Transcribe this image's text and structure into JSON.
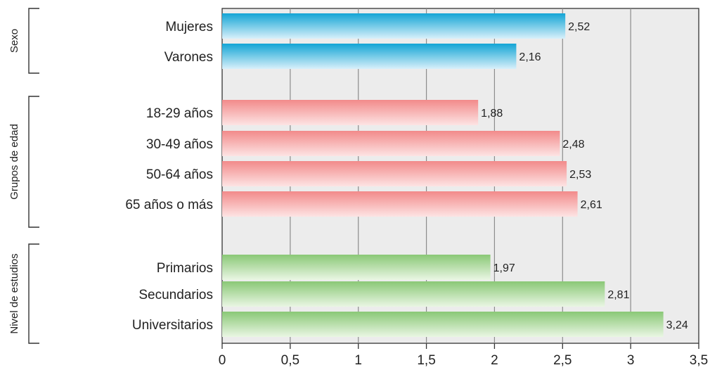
{
  "chart_data": {
    "type": "bar",
    "orientation": "horizontal",
    "grid": true,
    "xlim": [
      0,
      3.5
    ],
    "xticks": [
      0,
      0.5,
      1,
      1.5,
      2,
      2.5,
      3,
      3.5
    ],
    "xtick_labels": [
      "0",
      "0,5",
      "1",
      "1,5",
      "2",
      "2,5",
      "3",
      "3,5"
    ],
    "groups": [
      {
        "name": "Sexo",
        "color": "#1aa7d6",
        "categories": [
          "Mujeres",
          "Varones"
        ],
        "values": [
          2.52,
          2.16
        ],
        "labels": [
          "2,52",
          "2,16"
        ]
      },
      {
        "name": "Grupos de edad",
        "color": "#f08a8a",
        "categories": [
          "18-29 años",
          "30-49 años",
          "50-64 años",
          "65 años o más"
        ],
        "values": [
          1.88,
          2.48,
          2.53,
          2.61
        ],
        "labels": [
          "1,88",
          "2,48",
          "2,53",
          "2,61"
        ]
      },
      {
        "name": "Nivel de estudios",
        "color": "#8cc97a",
        "categories": [
          "Primarios",
          "Secundarios",
          "Universitarios"
        ],
        "values": [
          1.97,
          2.81,
          3.24
        ],
        "labels": [
          "1,97",
          "2,81",
          "3,24"
        ]
      }
    ]
  }
}
